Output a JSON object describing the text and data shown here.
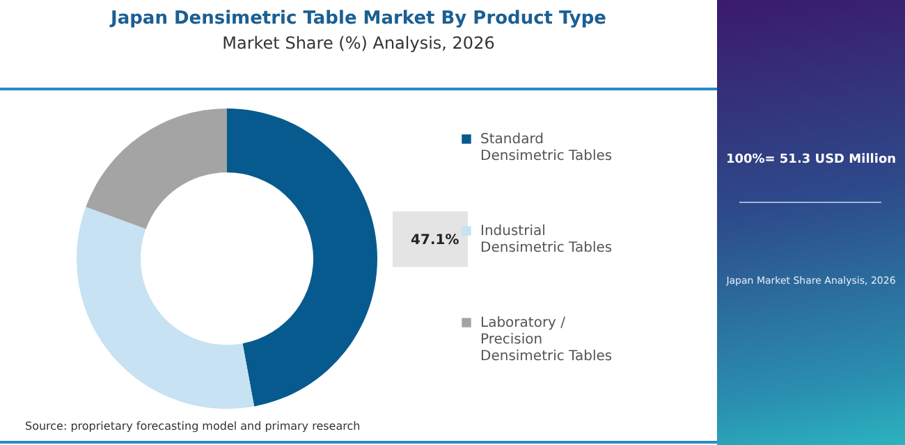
{
  "chart_data": {
    "type": "donut",
    "title": "Japan Densimetric Table Market By Product Type",
    "subtitle": "Market Share (%) Analysis, 2026",
    "categories": [
      "Standard Densimetric Tables",
      "Industrial Densimetric Tables",
      "Laboratory / Precision Densimetric Tables"
    ],
    "values": [
      47.1,
      33.5,
      19.4
    ],
    "colors": [
      "#065a8e",
      "#c6e2f3",
      "#a4a4a4"
    ],
    "value_labels": [
      "47.1%",
      null,
      null
    ],
    "legend": "right",
    "annotations": [
      "100%= 51.3 USD Million",
      "Japan Market Share Analysis, 2026",
      "Source: proprietary forecasting model and primary research"
    ]
  }
}
